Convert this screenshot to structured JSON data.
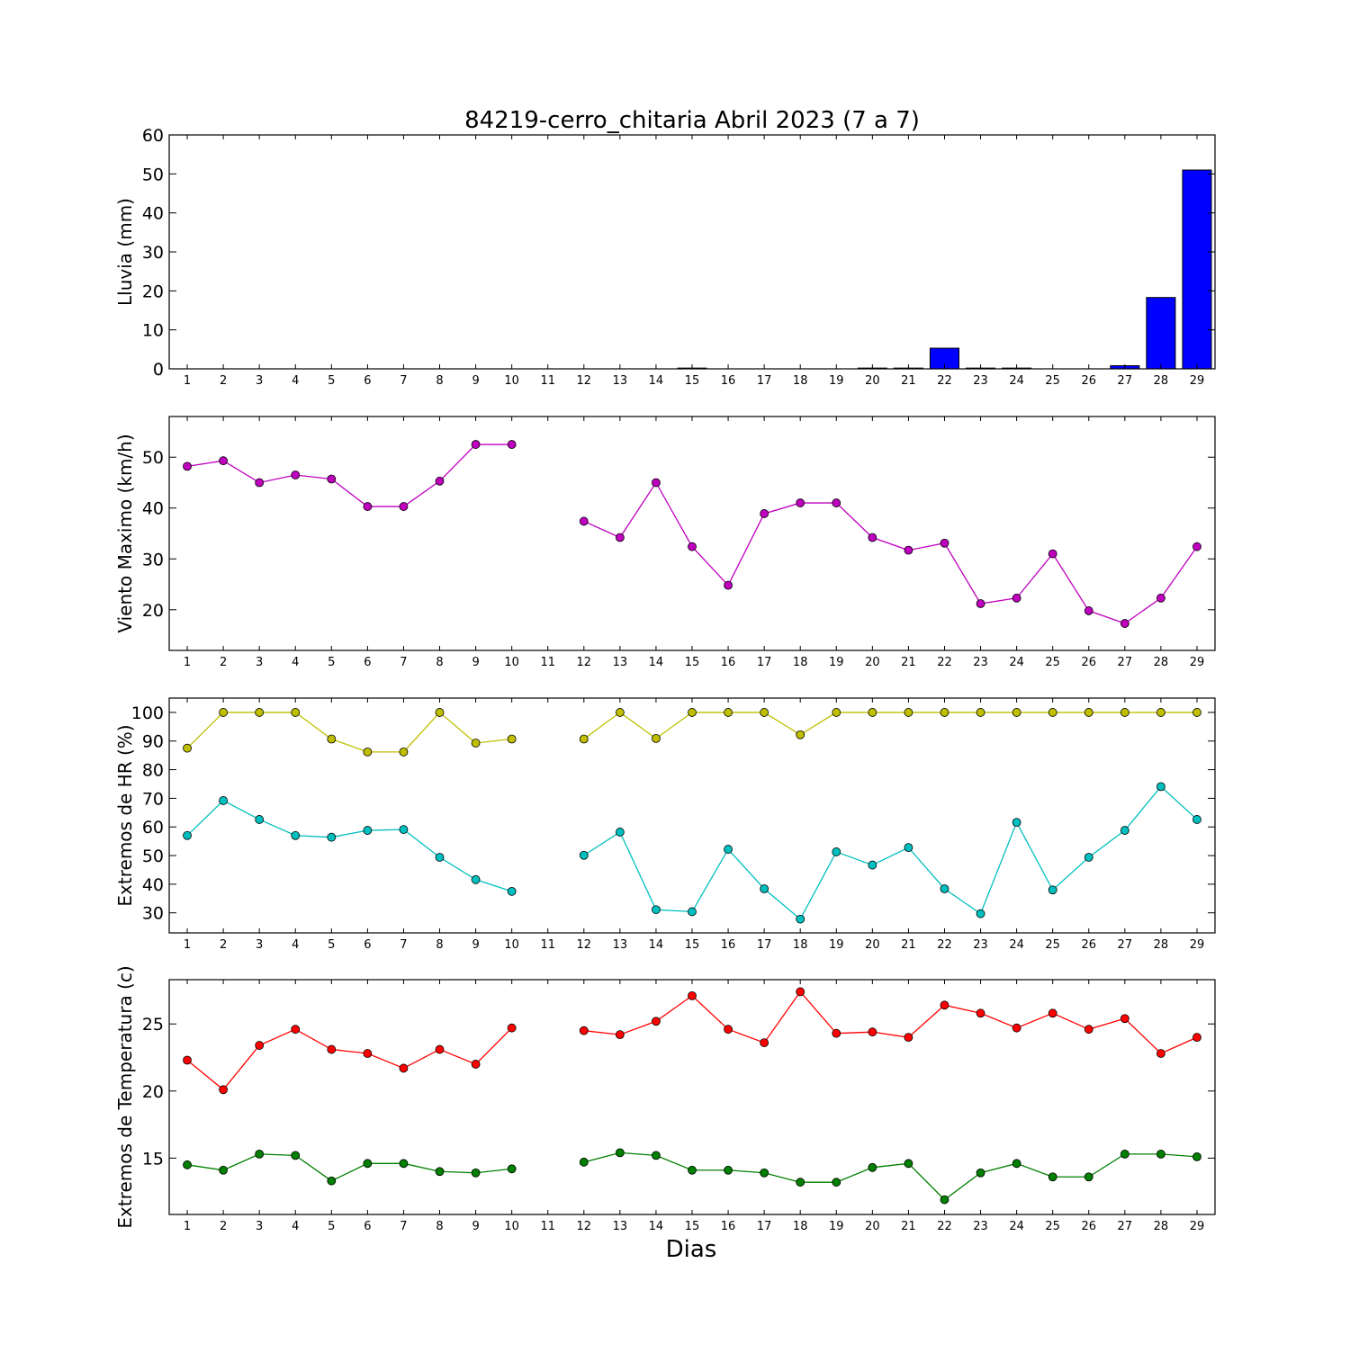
{
  "title": "84219-cerro_chitaria Abril 2023  (7 a 7)",
  "xlabel": "Dias",
  "chart_data": [
    {
      "type": "bar",
      "ylabel": "Lluvia (mm)",
      "ylim": [
        0,
        60
      ],
      "yticks": [
        0,
        10,
        20,
        30,
        40,
        50,
        60
      ],
      "xlim": [
        0.5,
        29.5
      ],
      "categories": [
        1,
        2,
        3,
        4,
        5,
        6,
        7,
        8,
        9,
        10,
        11,
        12,
        13,
        14,
        15,
        16,
        17,
        18,
        19,
        20,
        21,
        22,
        23,
        24,
        25,
        26,
        27,
        28,
        29
      ],
      "series": [
        {
          "color": "#0000ff",
          "values": [
            0,
            0,
            0,
            0,
            0,
            0,
            0,
            0,
            0,
            0,
            0,
            0,
            0,
            0,
            0.2,
            0,
            0,
            0,
            0,
            0.2,
            0.2,
            5.3,
            0.2,
            0.2,
            0,
            0,
            0.8,
            18.3,
            51.0
          ]
        }
      ]
    },
    {
      "type": "line",
      "ylabel": "Viento Maximo (km/h)",
      "ylim": [
        12,
        58
      ],
      "yticks": [
        20,
        30,
        40,
        50
      ],
      "xlim": [
        0.5,
        29.5
      ],
      "x": [
        1,
        2,
        3,
        4,
        5,
        6,
        7,
        8,
        9,
        10,
        11,
        12,
        13,
        14,
        15,
        16,
        17,
        18,
        19,
        20,
        21,
        22,
        23,
        24,
        25,
        26,
        27,
        28,
        29
      ],
      "series": [
        {
          "color": "#bf00bf",
          "values": [
            48.2,
            49.3,
            45.0,
            46.5,
            45.7,
            40.3,
            40.3,
            45.3,
            52.5,
            52.5,
            null,
            37.4,
            34.2,
            45.0,
            32.4,
            24.8,
            38.9,
            41.0,
            41.0,
            34.2,
            31.7,
            33.1,
            21.2,
            22.3,
            31.0,
            19.8,
            17.3,
            22.3,
            32.4
          ]
        }
      ]
    },
    {
      "type": "line",
      "ylabel": "Extremos de HR (%)",
      "ylim": [
        23,
        105
      ],
      "yticks": [
        30,
        40,
        50,
        60,
        70,
        80,
        90,
        100
      ],
      "xlim": [
        0.5,
        29.5
      ],
      "x": [
        1,
        2,
        3,
        4,
        5,
        6,
        7,
        8,
        9,
        10,
        11,
        12,
        13,
        14,
        15,
        16,
        17,
        18,
        19,
        20,
        21,
        22,
        23,
        24,
        25,
        26,
        27,
        28,
        29
      ],
      "series": [
        {
          "color": "#bfbf00",
          "values": [
            87.5,
            100,
            100,
            100,
            90.7,
            86.2,
            86.2,
            100,
            89.3,
            90.7,
            null,
            90.7,
            100,
            90.9,
            100,
            100,
            100,
            92.2,
            100,
            100,
            100,
            100,
            100,
            100,
            100,
            100,
            100,
            100,
            100
          ]
        },
        {
          "color": "#00bfbf",
          "values": [
            57.0,
            69.2,
            62.6,
            57.0,
            56.4,
            58.8,
            59.1,
            49.4,
            41.6,
            37.5,
            null,
            50.1,
            58.2,
            31.1,
            30.4,
            52.2,
            38.4,
            27.8,
            51.3,
            46.7,
            52.8,
            38.4,
            29.7,
            61.6,
            38.0,
            49.4,
            58.8,
            74.1,
            62.6
          ]
        }
      ]
    },
    {
      "type": "line",
      "ylabel": "Extremos de Temperatura (c)",
      "ylim": [
        10.8,
        28.3
      ],
      "yticks": [
        15,
        20,
        25
      ],
      "xlim": [
        0.5,
        29.5
      ],
      "x": [
        1,
        2,
        3,
        4,
        5,
        6,
        7,
        8,
        9,
        10,
        11,
        12,
        13,
        14,
        15,
        16,
        17,
        18,
        19,
        20,
        21,
        22,
        23,
        24,
        25,
        26,
        27,
        28,
        29
      ],
      "series": [
        {
          "color": "#ff0000",
          "values": [
            22.3,
            20.1,
            23.4,
            24.6,
            23.1,
            22.8,
            21.7,
            23.1,
            22.0,
            24.7,
            null,
            24.5,
            24.2,
            25.2,
            27.1,
            24.6,
            23.6,
            27.4,
            24.3,
            24.4,
            24.0,
            26.4,
            25.8,
            24.7,
            25.8,
            24.6,
            25.4,
            22.8,
            24.0
          ]
        },
        {
          "color": "#007f00",
          "values": [
            14.5,
            14.1,
            15.3,
            15.2,
            13.3,
            14.6,
            14.6,
            14.0,
            13.9,
            14.2,
            null,
            14.7,
            15.4,
            15.2,
            14.1,
            14.1,
            13.9,
            13.2,
            13.2,
            14.3,
            14.6,
            11.9,
            13.9,
            14.6,
            13.6,
            13.6,
            15.3,
            15.3,
            15.1
          ]
        }
      ]
    }
  ]
}
